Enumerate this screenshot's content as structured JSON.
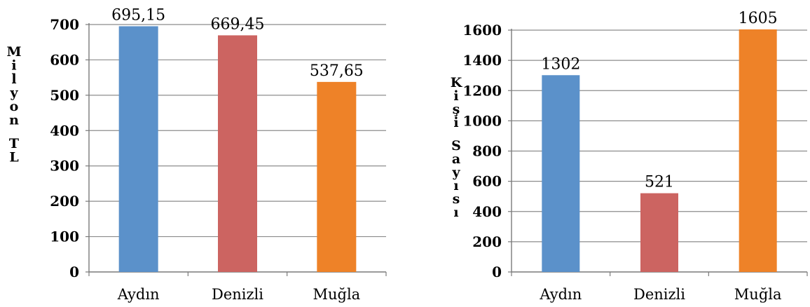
{
  "chart_data": [
    {
      "type": "bar",
      "title": "",
      "xlabel": "",
      "ylabel": "Milyon TL",
      "categories": [
        "Aydın",
        "Denizli",
        "Muğla"
      ],
      "values": [
        695.15,
        669.45,
        537.65
      ],
      "data_labels": [
        "695,15",
        "669,45",
        "537,65"
      ],
      "colors": [
        "#5B91CA",
        "#CC6461",
        "#EE8228"
      ],
      "ylim": [
        0,
        700
      ],
      "yticks": [
        0,
        100,
        200,
        300,
        400,
        500,
        600,
        700
      ],
      "grid": true,
      "legend": "none"
    },
    {
      "type": "bar",
      "title": "",
      "xlabel": "",
      "ylabel": "Kişi Sayısı",
      "categories": [
        "Aydın",
        "Denizli",
        "Muğla"
      ],
      "values": [
        1302,
        521,
        1605
      ],
      "data_labels": [
        "1302",
        "521",
        "1605"
      ],
      "colors": [
        "#5B91CA",
        "#CC6461",
        "#EE8228"
      ],
      "ylim": [
        0,
        1600
      ],
      "yticks": [
        0,
        200,
        400,
        600,
        800,
        1000,
        1200,
        1400,
        1600
      ],
      "grid": true,
      "legend": "none"
    }
  ]
}
